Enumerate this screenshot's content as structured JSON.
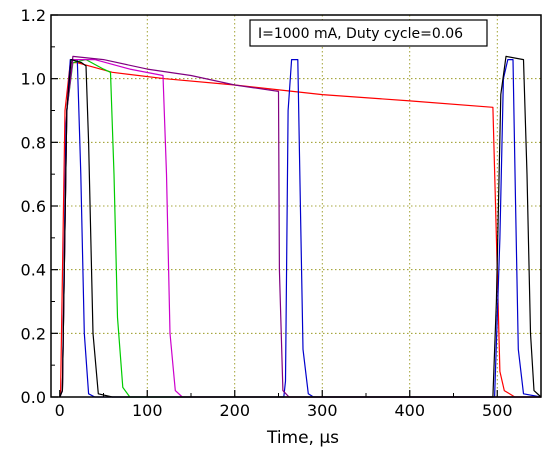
{
  "chart_data": {
    "type": "line",
    "title": "",
    "xlabel": "Time, µs",
    "ylabel": "",
    "xlim": [
      -10,
      550
    ],
    "ylim": [
      0,
      1.2
    ],
    "xticks": [
      0,
      100,
      200,
      300,
      400,
      500
    ],
    "yticks": [
      0.0,
      0.2,
      0.4,
      0.6,
      0.8,
      1.0,
      1.2
    ],
    "ytick_labels": [
      "0.0",
      "0.2",
      "0.4",
      "0.6",
      "0.8",
      "1.0",
      "1.2"
    ],
    "grid": true,
    "legend_box": "I=1000 mA, Duty cycle=0.06",
    "legend_position": "top-right",
    "series": [
      {
        "color": "#ff0000",
        "x": [
          0,
          1,
          6,
          12,
          20,
          60,
          120,
          200,
          300,
          400,
          495,
          499,
          503,
          508,
          520,
          535,
          550
        ],
        "y": [
          0,
          0.02,
          0.9,
          1.05,
          1.05,
          1.02,
          1.0,
          0.98,
          0.95,
          0.93,
          0.91,
          0.5,
          0.08,
          0.02,
          0.0,
          0.0,
          0.0
        ]
      },
      {
        "color": "#0000cc",
        "x": [
          0,
          3,
          7,
          12,
          20,
          24,
          28,
          33,
          40,
          256,
          258,
          261,
          265,
          272,
          275,
          278,
          284,
          290,
          497,
          503,
          507,
          512,
          518,
          521,
          524,
          530,
          550
        ],
        "y": [
          0,
          0.02,
          0.85,
          1.06,
          1.06,
          0.7,
          0.2,
          0.01,
          0.0,
          0.0,
          0.05,
          0.9,
          1.06,
          1.06,
          0.6,
          0.15,
          0.01,
          0.0,
          0.0,
          0.5,
          1.0,
          1.06,
          1.06,
          0.6,
          0.15,
          0.01,
          0.0
        ]
      },
      {
        "color": "#00cc00",
        "x": [
          0,
          3,
          8,
          15,
          30,
          50,
          58,
          62,
          66,
          72,
          80,
          550
        ],
        "y": [
          0,
          0.02,
          0.9,
          1.05,
          1.06,
          1.03,
          1.02,
          0.7,
          0.25,
          0.03,
          0.0,
          0.0
        ]
      },
      {
        "color": "#cc00cc",
        "x": [
          0,
          3,
          8,
          15,
          40,
          80,
          118,
          122,
          126,
          132,
          140,
          550
        ],
        "y": [
          0,
          0.02,
          0.9,
          1.06,
          1.06,
          1.03,
          1.01,
          0.7,
          0.2,
          0.02,
          0.0,
          0.0
        ]
      },
      {
        "color": "#800080",
        "x": [
          0,
          3,
          8,
          15,
          50,
          100,
          150,
          200,
          250,
          251,
          255,
          262,
          550
        ],
        "y": [
          0,
          0.02,
          0.9,
          1.07,
          1.06,
          1.03,
          1.01,
          0.98,
          0.96,
          0.4,
          0.02,
          0.0,
          0.0
        ]
      },
      {
        "color": "#000000",
        "x": [
          0,
          3,
          8,
          13,
          25,
          30,
          33,
          38,
          44,
          60,
          495,
          499,
          504,
          510,
          530,
          534,
          538,
          542,
          550
        ],
        "y": [
          0,
          0.02,
          0.9,
          1.06,
          1.05,
          1.04,
          0.8,
          0.2,
          0.01,
          0.0,
          0.0,
          0.3,
          0.95,
          1.07,
          1.06,
          0.7,
          0.2,
          0.02,
          0.0
        ]
      }
    ]
  }
}
